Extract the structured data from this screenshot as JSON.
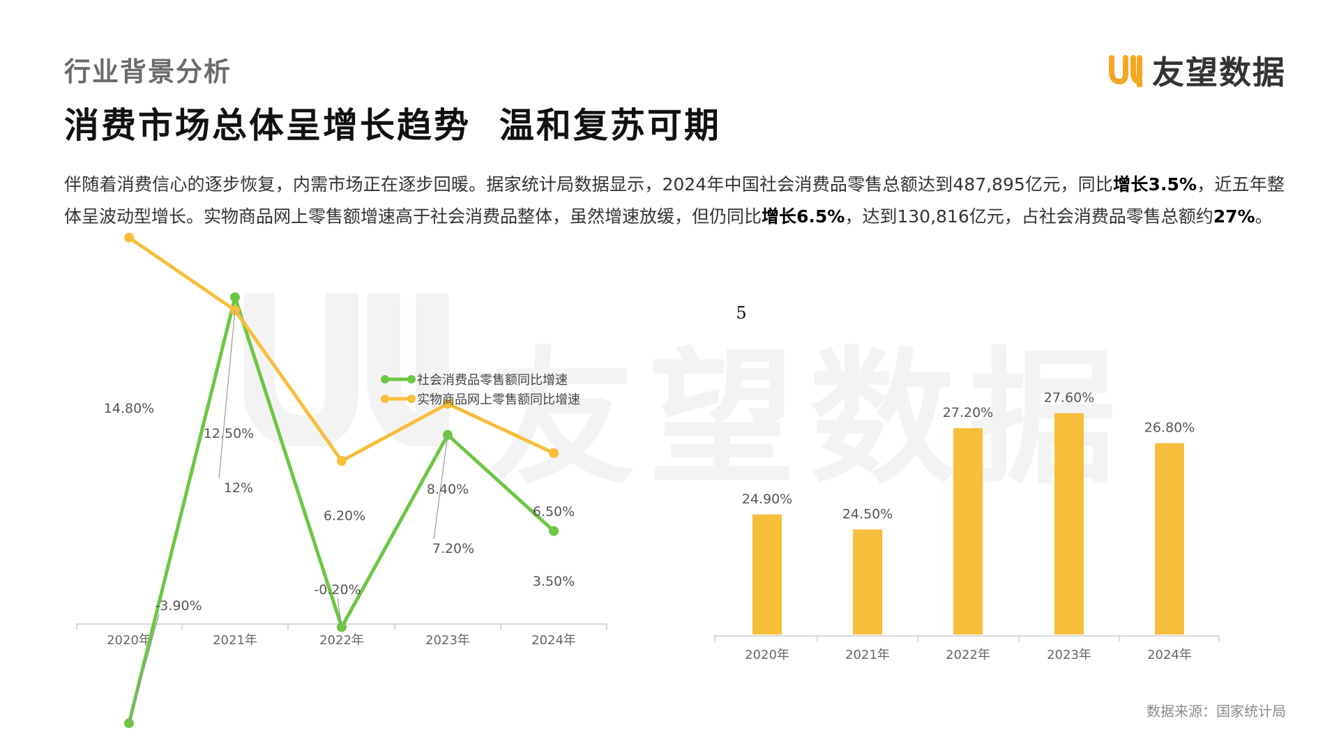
{
  "header": {
    "section_label": "行业背景分析",
    "brand_name": "友望数据",
    "brand_logo_icon": "uy-logo-icon",
    "brand_colors": [
      "#f5a623",
      "#fcd34d"
    ],
    "headline": "消费市场总体呈增长趋势  温和复苏可期"
  },
  "intro": {
    "p1": "伴随着消费信心的逐步恢复，内需市场正在逐步回暖。据家统计局数据显示，2024年中国社会消费品零售总额达到487,895亿元，同比",
    "b1": "增长3.5%",
    "p2": "，近五年整体呈波动型增长。实物商品网上零售额增速高于社会消费品整体，虽然增速放缓，但仍同比",
    "b2": "增长6.5%",
    "p3": "，达到130,816亿元，占社会消费品零售总额约",
    "b3": "27%",
    "p4": "。"
  },
  "watermark": {
    "text": "友望数据"
  },
  "chart_data": [
    {
      "type": "line",
      "categories": [
        "2020年",
        "2021年",
        "2022年",
        "2023年",
        "2024年"
      ],
      "series": [
        {
          "name": "社会消费品零售额同比增速",
          "values": [
            -3.9,
            12.5,
            -0.2,
            7.2,
            3.5
          ],
          "labels": [
            "-3.90%",
            "12.50%",
            "-0.20%",
            "7.20%",
            "3.50%"
          ],
          "color": "#6cc644"
        },
        {
          "name": "实物商品网上零售额同比增速",
          "values": [
            14.8,
            12.0,
            6.2,
            8.4,
            6.5
          ],
          "labels": [
            "14.80%",
            "12%",
            "6.20%",
            "8.40%",
            "6.50%"
          ],
          "color": "#f7be3c"
        }
      ],
      "legend": "top-center",
      "grid": false
    },
    {
      "type": "bar",
      "title": "5",
      "categories": [
        "2020年",
        "2021年",
        "2022年",
        "2023年",
        "2024年"
      ],
      "values": [
        24.9,
        24.5,
        27.2,
        27.6,
        26.8
      ],
      "labels": [
        "24.90%",
        "24.50%",
        "27.20%",
        "27.60%",
        "26.80%"
      ],
      "color": "#f7be3c",
      "grid": false
    }
  ],
  "footer": {
    "source": "数据来源：国家统计局"
  }
}
